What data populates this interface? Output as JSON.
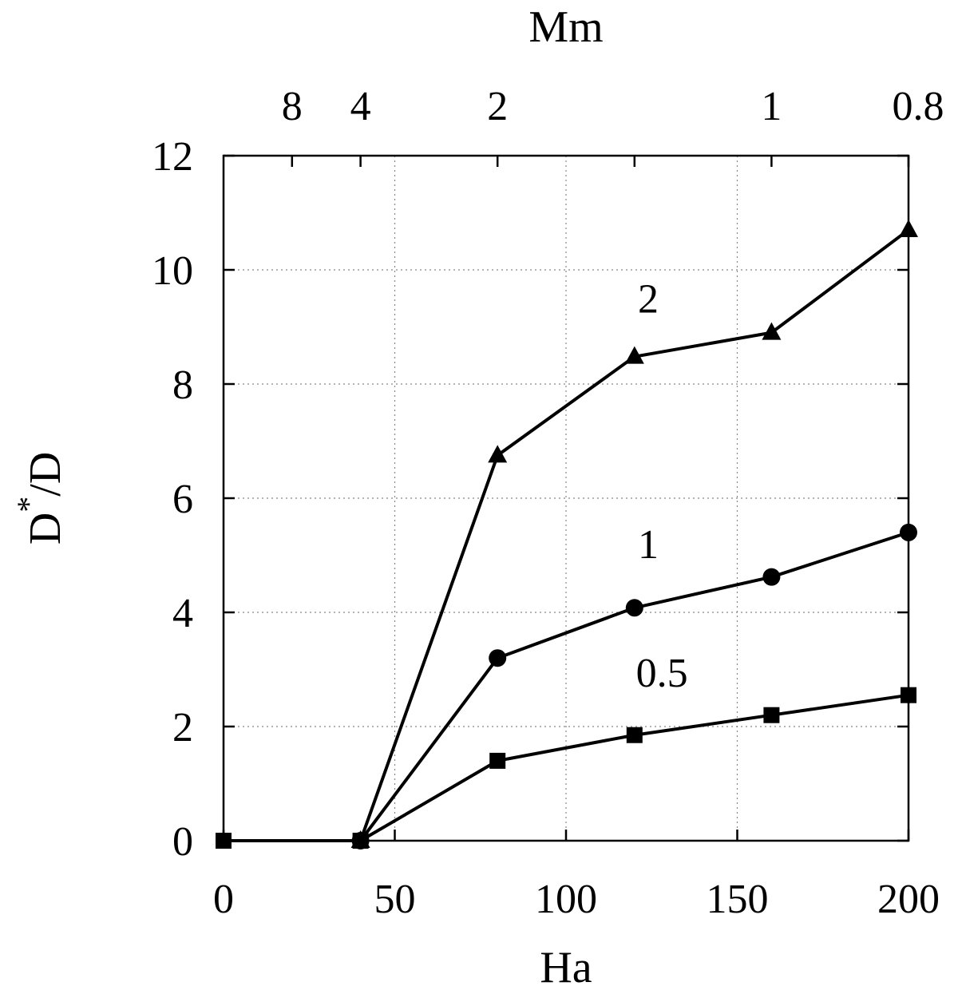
{
  "chart_data": {
    "type": "line",
    "xlabel": "Ha",
    "ylabel": "D*/D",
    "ylabel_base": "D",
    "ylabel_sup": "*",
    "ylabel_tail": "/D",
    "top_axis_label": "Mm",
    "xlim": [
      0,
      200
    ],
    "ylim": [
      0,
      12
    ],
    "x_ticks": [
      0,
      50,
      100,
      150,
      200
    ],
    "y_ticks": [
      0,
      2,
      4,
      6,
      8,
      10,
      12
    ],
    "top_ticks": [
      {
        "label": "8",
        "ha": 20
      },
      {
        "label": "4",
        "ha": 40
      },
      {
        "label": "2",
        "ha": 80
      },
      {
        "label": "1",
        "ha": 160
      },
      {
        "label": "0.8",
        "ha": 200
      }
    ],
    "top_minor_ticks_ha": [
      120
    ],
    "grid": true,
    "series": [
      {
        "name": "0.5",
        "marker": "square",
        "x": [
          0,
          40,
          80,
          120,
          160,
          200
        ],
        "y": [
          0,
          0,
          1.4,
          1.85,
          2.2,
          2.55
        ],
        "label_at": [
          128,
          2.7
        ]
      },
      {
        "name": "1",
        "marker": "circle",
        "x": [
          40,
          80,
          120,
          160,
          200
        ],
        "y": [
          0,
          3.2,
          4.08,
          4.62,
          5.4
        ],
        "label_at": [
          124,
          4.95
        ]
      },
      {
        "name": "2",
        "marker": "triangle",
        "x": [
          40,
          80,
          120,
          160,
          200
        ],
        "y": [
          0,
          6.75,
          8.48,
          8.9,
          10.7
        ],
        "label_at": [
          124,
          9.25
        ]
      }
    ]
  }
}
